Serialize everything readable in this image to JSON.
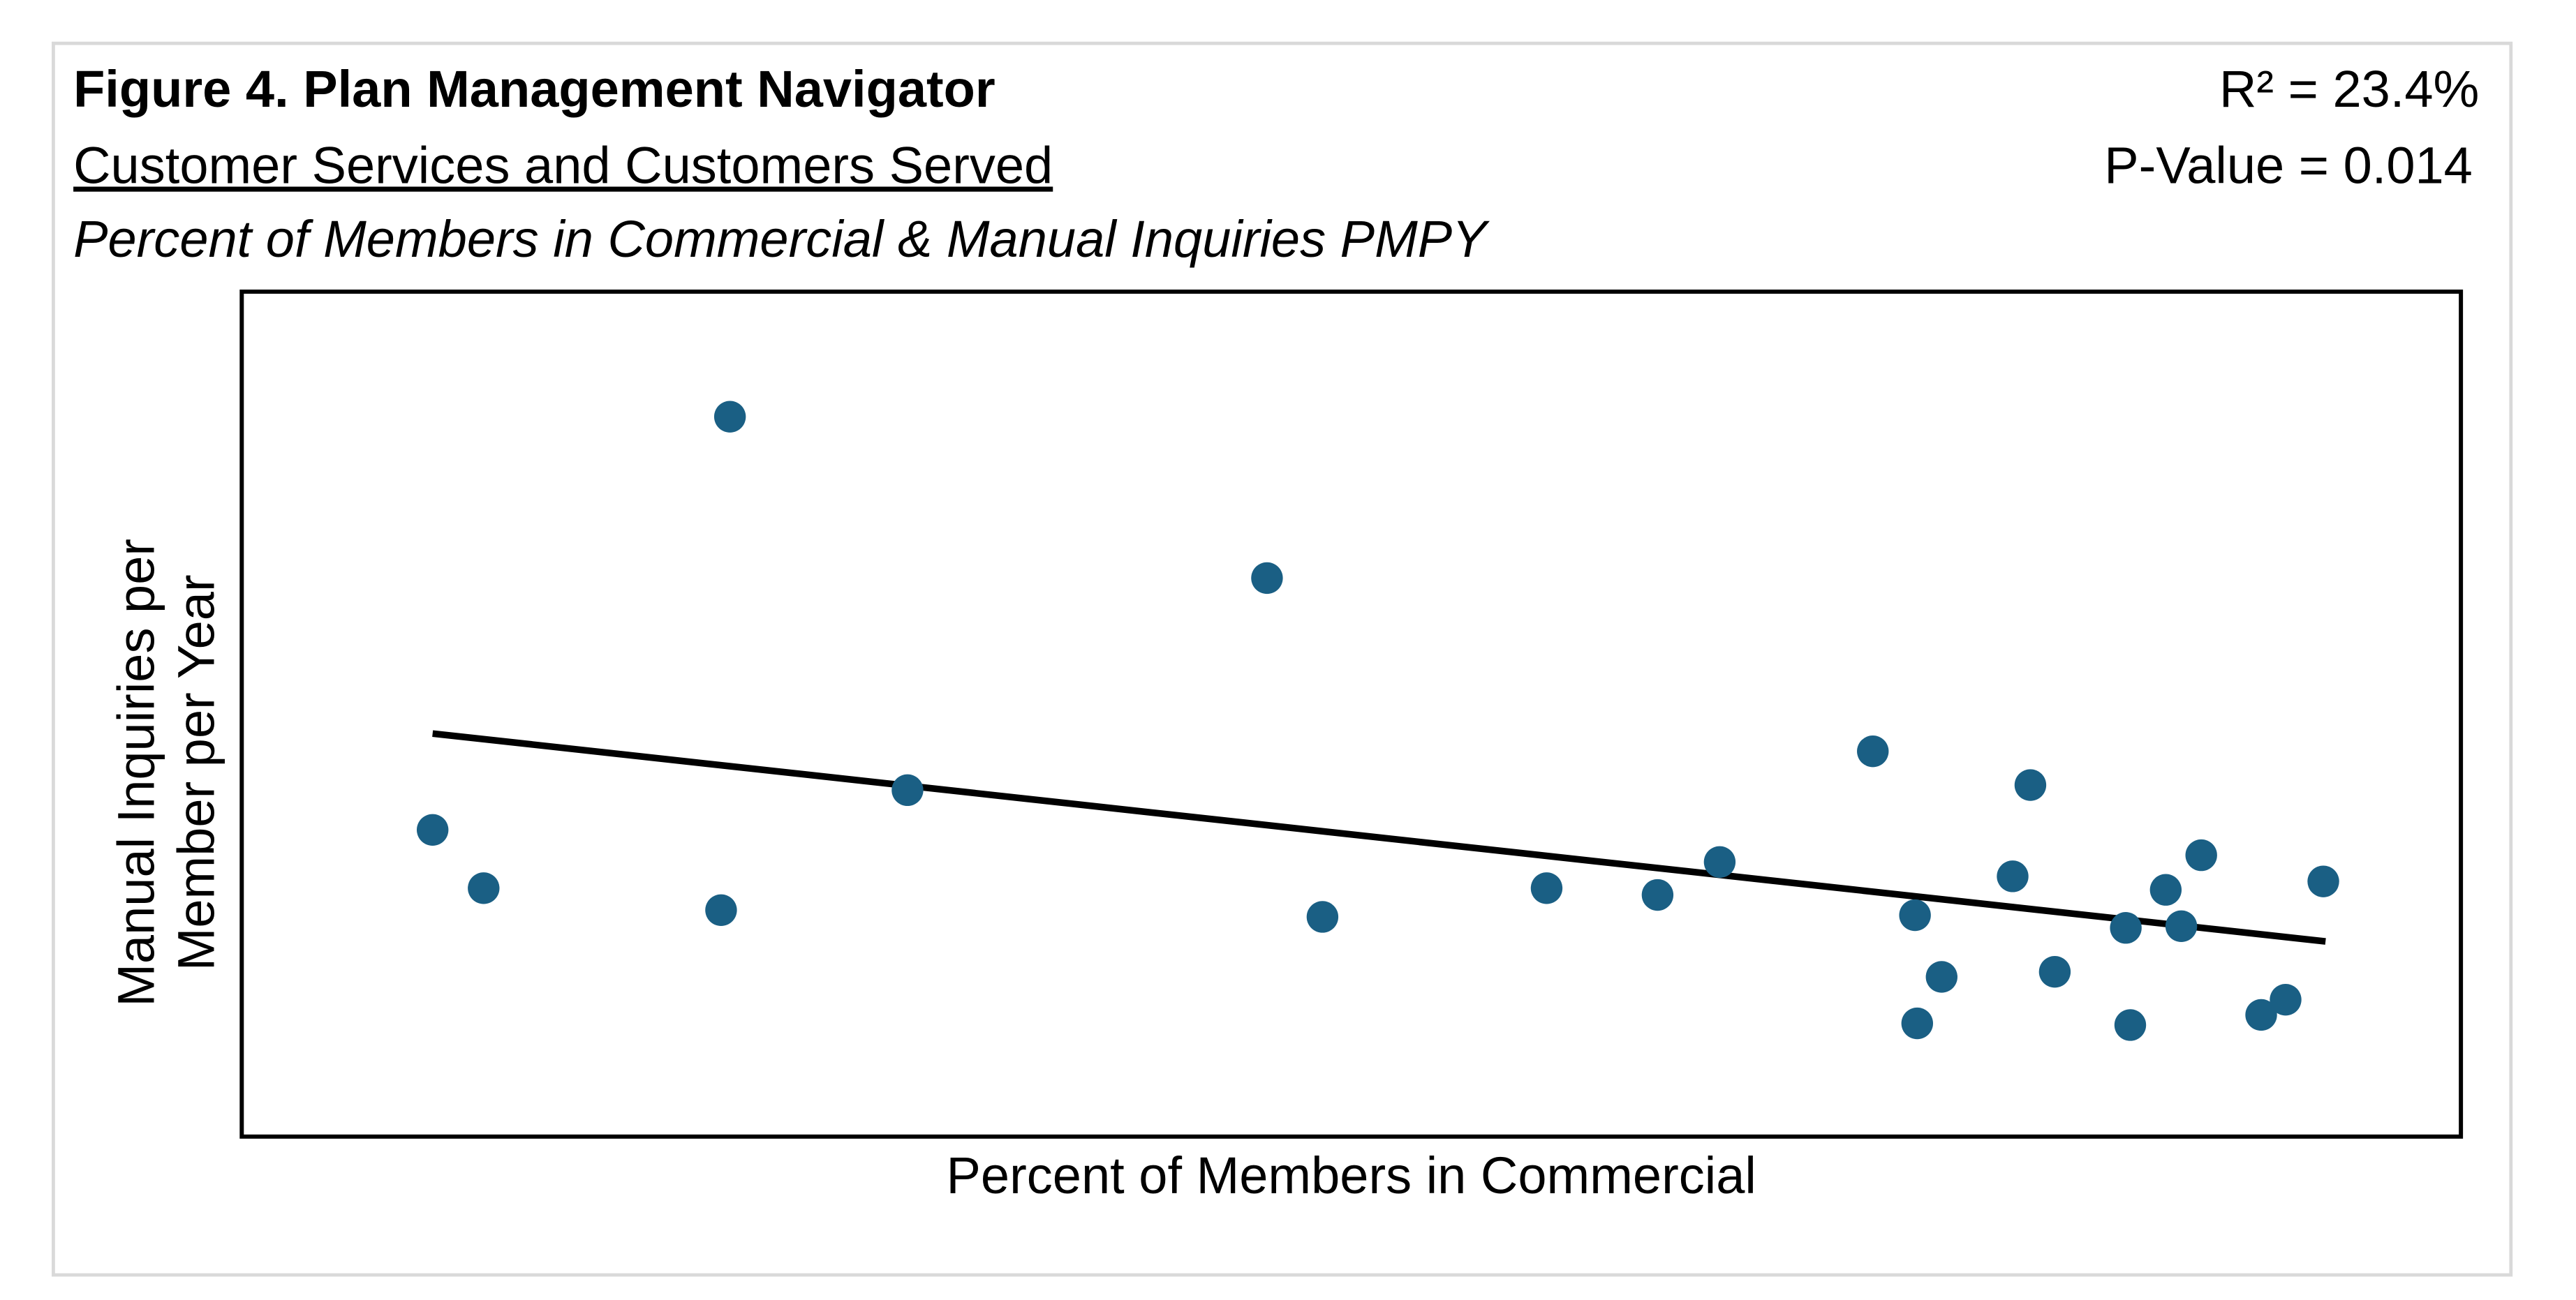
{
  "chart_data": {
    "type": "scatter",
    "title": "Figure 4. Plan Management Navigator",
    "subtitle": "Customer Services and Customers Served",
    "description": "Percent of Members in Commercial & Manual Inquiries PMPY",
    "stats": {
      "r2": "R² = 23.4%",
      "p_value": "P-Value = 0.014"
    },
    "xlabel": "Percent of Members in Commercial",
    "ylabel": "Manual Inquiries per Member per Year",
    "xlim": [
      0,
      100
    ],
    "ylim": [
      0,
      100
    ],
    "grid": false,
    "marker_color": "#1a5f84",
    "points": [
      [
        8.6,
        36.3
      ],
      [
        10.9,
        29.4
      ],
      [
        22.0,
        85.2
      ],
      [
        21.6,
        26.8
      ],
      [
        30.0,
        41.0
      ],
      [
        46.2,
        66.1
      ],
      [
        48.7,
        26.0
      ],
      [
        58.8,
        29.4
      ],
      [
        63.8,
        28.6
      ],
      [
        66.6,
        32.5
      ],
      [
        73.5,
        45.6
      ],
      [
        75.4,
        26.2
      ],
      [
        75.5,
        13.4
      ],
      [
        76.6,
        18.9
      ],
      [
        79.8,
        30.8
      ],
      [
        80.6,
        41.6
      ],
      [
        81.7,
        19.5
      ],
      [
        84.9,
        24.7
      ],
      [
        85.1,
        13.2
      ],
      [
        86.7,
        29.2
      ],
      [
        87.4,
        24.9
      ],
      [
        88.3,
        33.3
      ],
      [
        91.0,
        14.4
      ],
      [
        92.1,
        16.2
      ],
      [
        93.8,
        30.2
      ]
    ],
    "trendline": [
      [
        8.6,
        47.7
      ],
      [
        93.9,
        23.1
      ]
    ]
  }
}
